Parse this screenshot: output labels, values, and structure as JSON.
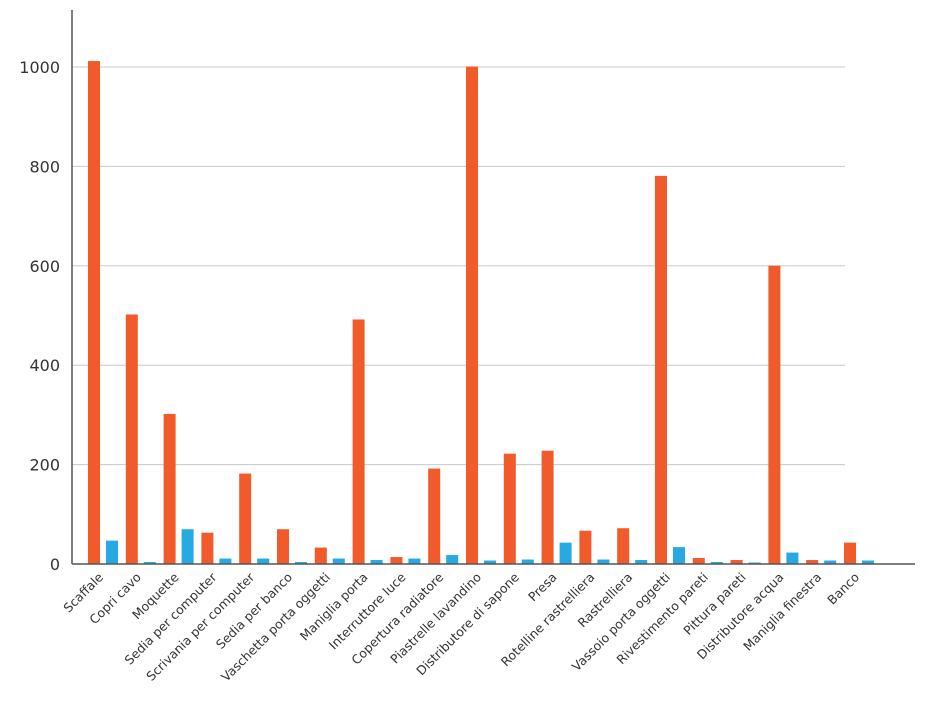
{
  "chart_data": {
    "type": "bar",
    "title": "",
    "xlabel": "",
    "ylabel": "",
    "ylim": [
      0,
      1100
    ],
    "yticks": [
      0,
      200,
      400,
      600,
      800,
      1000
    ],
    "grid": true,
    "legend": "none",
    "categories": [
      "Scaffale",
      "Copri cavo",
      "Moquette",
      "Sedia per computer",
      "Scrivania per computer",
      "Sedia per banco",
      "Vaschetta porta oggetti",
      "Maniglia porta",
      "Interruttore luce",
      "Copertura radiatore",
      "Piastrelle lavandino",
      "Distributore di sapone",
      "Presa",
      "Rotelline rastrelliera",
      "Rastrelliera",
      "Vassoio porta oggetti",
      "Rivestimento pareti",
      "Pittura pareti",
      "Distributore acqua",
      "Maniglia finestra",
      "Banco"
    ],
    "series": [
      {
        "color": "#f15a2b",
        "values": [
          1012,
          502,
          302,
          63,
          182,
          70,
          33,
          492,
          14,
          192,
          1001,
          222,
          228,
          67,
          72,
          781,
          12,
          8,
          600,
          8,
          43
        ]
      },
      {
        "color": "#27aae1",
        "values": [
          47,
          4,
          70,
          11,
          11,
          4,
          11,
          8,
          11,
          18,
          7,
          9,
          43,
          9,
          8,
          34,
          4,
          3,
          23,
          7,
          7
        ]
      }
    ]
  }
}
